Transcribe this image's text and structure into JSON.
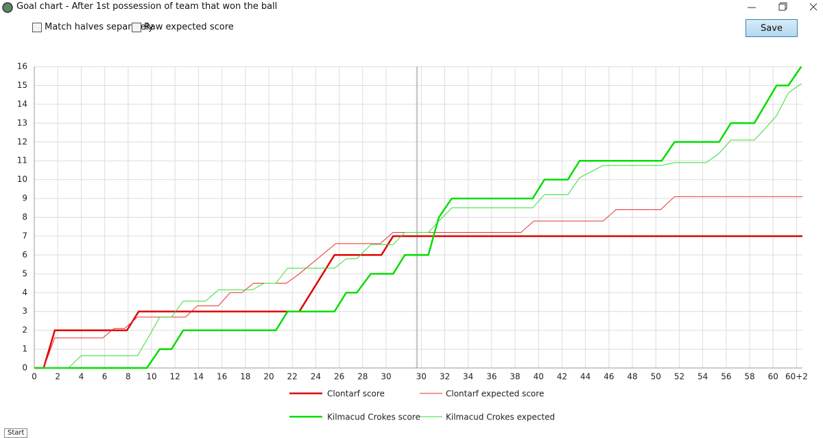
{
  "window": {
    "title": "Goal chart - After 1st possession of team that won the ball"
  },
  "controls": {
    "checkboxes": [
      "Match halves separately",
      "Raw expected score"
    ],
    "button": "Save"
  },
  "taskbar": {
    "start": "Start"
  },
  "chart_data": {
    "type": "line",
    "xlim": [
      0,
      65.5
    ],
    "xticks": [
      0,
      2,
      4,
      6,
      8,
      10,
      12,
      14,
      16,
      18,
      20,
      22,
      24,
      26,
      28,
      30,
      {
        "value": 33,
        "label": "30"
      },
      {
        "value": 35,
        "label": "32"
      },
      {
        "value": 37,
        "label": "34"
      },
      {
        "value": 39,
        "label": "36"
      },
      {
        "value": 41,
        "label": "38"
      },
      {
        "value": 43,
        "label": "40"
      },
      {
        "value": 45,
        "label": "42"
      },
      {
        "value": 47,
        "label": "44"
      },
      {
        "value": 49,
        "label": "46"
      },
      {
        "value": 51,
        "label": "48"
      },
      {
        "value": 53,
        "label": "50"
      },
      {
        "value": 55,
        "label": "52"
      },
      {
        "value": 57,
        "label": "54"
      },
      {
        "value": 59,
        "label": "56"
      },
      {
        "value": 61,
        "label": "58"
      },
      {
        "value": 63,
        "label": "60"
      },
      {
        "value": 65,
        "label": "60+2"
      }
    ],
    "ylim": [
      0,
      16
    ],
    "yticks": [
      0,
      1,
      2,
      3,
      4,
      5,
      6,
      7,
      8,
      9,
      10,
      11,
      12,
      13,
      14,
      15,
      16
    ],
    "grid": true,
    "series": [
      {
        "name": "Clontarf score",
        "color": "#e00000",
        "width": 2.5,
        "x": [
          0,
          0.8,
          1.75,
          7,
          7.9,
          8.9,
          22.6,
          25.6,
          29.6,
          30.6,
          65.5
        ],
        "values": [
          0,
          0,
          2,
          2,
          2,
          3,
          3,
          6,
          6,
          7,
          7
        ]
      },
      {
        "name": "Clontarf expected score",
        "color": "#e83030",
        "width": 1,
        "x": [
          0,
          0.8,
          1.75,
          5.85,
          6.8,
          7.7,
          8.8,
          12.9,
          13.9,
          15.7,
          16.7,
          17.7,
          18.7,
          21.5,
          22.6,
          25.7,
          29.5,
          30.6,
          41.5,
          42.6,
          48.5,
          49.6,
          53.4,
          54.6,
          65.5
        ],
        "values": [
          0,
          0,
          1.6,
          1.6,
          2.1,
          2.1,
          2.7,
          2.7,
          3.3,
          3.3,
          4.0,
          4.0,
          4.5,
          4.5,
          5.0,
          6.6,
          6.6,
          7.2,
          7.2,
          7.8,
          7.8,
          8.4,
          8.4,
          9.1,
          9.1
        ]
      },
      {
        "name": "Kilmacud Crokes score",
        "color": "#00dd00",
        "width": 2.5,
        "x": [
          0,
          9.6,
          10.7,
          11.7,
          12.7,
          20.6,
          21.6,
          25.6,
          26.6,
          27.5,
          28.7,
          30.6,
          31.6,
          33.6,
          34.5,
          35.6,
          42.5,
          43.5,
          45.5,
          46.5,
          53.5,
          54.6,
          58.4,
          59.4,
          61.4,
          63.3,
          64.3,
          65.4
        ],
        "values": [
          0,
          0,
          1,
          1,
          2,
          2,
          3,
          3,
          4,
          4,
          5,
          5,
          6,
          6,
          8,
          9,
          9,
          10,
          10,
          11,
          11,
          12,
          12,
          13,
          13,
          15,
          15,
          16
        ]
      },
      {
        "name": "Kilmacud Crokes expected",
        "color": "#33dd33",
        "width": 1,
        "x": [
          0,
          2.9,
          4.0,
          8.8,
          9.7,
          10.7,
          11.7,
          12.7,
          14.6,
          15.7,
          18.6,
          19.6,
          20.6,
          21.6,
          25.6,
          26.6,
          27.5,
          28.7,
          30.6,
          31.6,
          33.6,
          34.5,
          35.6,
          42.5,
          43.5,
          45.5,
          46.5,
          48.5,
          53.5,
          54.6,
          57.3,
          58.4,
          59.4,
          61.4,
          62.3,
          63.3,
          64.3,
          65.4
        ],
        "values": [
          0,
          0,
          0.65,
          0.65,
          1.6,
          2.7,
          2.7,
          3.55,
          3.55,
          4.15,
          4.15,
          4.5,
          4.5,
          5.3,
          5.3,
          5.8,
          5.8,
          6.55,
          6.55,
          7.2,
          7.2,
          7.8,
          8.5,
          8.5,
          9.2,
          9.2,
          10.1,
          10.75,
          10.75,
          10.9,
          10.9,
          11.4,
          12.1,
          12.1,
          12.7,
          13.4,
          14.6,
          15.1
        ]
      }
    ]
  }
}
